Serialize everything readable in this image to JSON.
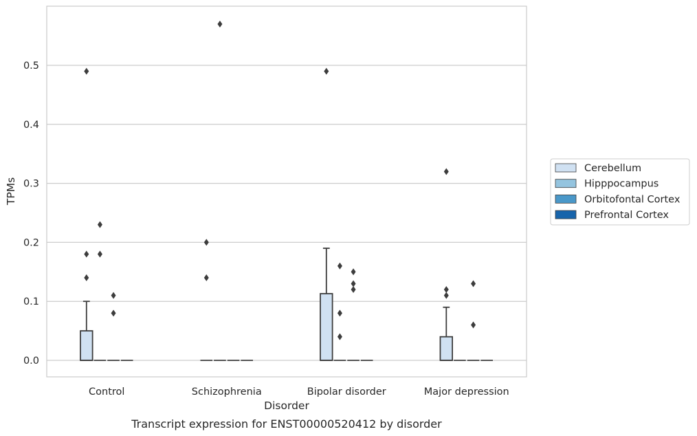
{
  "chart_data": {
    "type": "box",
    "caption": "Transcript expression for ENST00000520412 by disorder",
    "xlabel": "Disorder",
    "ylabel": "TPMs",
    "ylim": [
      -0.028,
      0.598
    ],
    "yticks": [
      "0.0",
      "0.1",
      "0.2",
      "0.3",
      "0.4",
      "0.5"
    ],
    "grid": "horizontal",
    "legend_placement": "right",
    "categories": [
      "Control",
      "Schizophrenia",
      "Bipolar disorder",
      "Major depression"
    ],
    "series": [
      {
        "name": "Cerebellum",
        "color": "#d0e1f2",
        "boxes": [
          {
            "q1": 0,
            "median": 0,
            "q3": 0.05,
            "whisker_low": 0,
            "whisker_high": 0.1,
            "outliers": [
              0.14,
              0.18,
              0.49
            ]
          },
          {
            "q1": 0,
            "median": 0,
            "q3": 0,
            "whisker_low": 0,
            "whisker_high": 0,
            "outliers": [
              0.14,
              0.2
            ]
          },
          {
            "q1": 0,
            "median": 0,
            "q3": 0.113,
            "whisker_low": 0,
            "whisker_high": 0.19,
            "outliers": [
              0.49
            ]
          },
          {
            "q1": 0,
            "median": 0,
            "q3": 0.04,
            "whisker_low": 0,
            "whisker_high": 0.09,
            "outliers": [
              0.11,
              0.12,
              0.32
            ]
          }
        ]
      },
      {
        "name": "Hipppocampus",
        "color": "#94c4df",
        "boxes": [
          {
            "q1": 0,
            "median": 0,
            "q3": 0,
            "whisker_low": 0,
            "whisker_high": 0,
            "outliers": [
              0.18,
              0.23
            ]
          },
          {
            "q1": 0,
            "median": 0,
            "q3": 0,
            "whisker_low": 0,
            "whisker_high": 0,
            "outliers": [
              0.57
            ]
          },
          {
            "q1": 0,
            "median": 0,
            "q3": 0,
            "whisker_low": 0,
            "whisker_high": 0,
            "outliers": [
              0.04,
              0.08,
              0.16
            ]
          },
          {
            "q1": 0,
            "median": 0,
            "q3": 0,
            "whisker_low": 0,
            "whisker_high": 0,
            "outliers": []
          }
        ]
      },
      {
        "name": "Orbitofontal Cortex",
        "color": "#4a98c9",
        "boxes": [
          {
            "q1": 0,
            "median": 0,
            "q3": 0,
            "whisker_low": 0,
            "whisker_high": 0,
            "outliers": [
              0.08,
              0.11
            ]
          },
          {
            "q1": 0,
            "median": 0,
            "q3": 0,
            "whisker_low": 0,
            "whisker_high": 0,
            "outliers": []
          },
          {
            "q1": 0,
            "median": 0,
            "q3": 0,
            "whisker_low": 0,
            "whisker_high": 0,
            "outliers": [
              0.12,
              0.13,
              0.15
            ]
          },
          {
            "q1": 0,
            "median": 0,
            "q3": 0,
            "whisker_low": 0,
            "whisker_high": 0,
            "outliers": [
              0.06,
              0.13
            ]
          }
        ]
      },
      {
        "name": "Prefrontal Cortex",
        "color": "#1764ab",
        "boxes": [
          {
            "q1": 0,
            "median": 0,
            "q3": 0,
            "whisker_low": 0,
            "whisker_high": 0,
            "outliers": []
          },
          {
            "q1": 0,
            "median": 0,
            "q3": 0,
            "whisker_low": 0,
            "whisker_high": 0,
            "outliers": []
          },
          {
            "q1": 0,
            "median": 0,
            "q3": 0,
            "whisker_low": 0,
            "whisker_high": 0,
            "outliers": []
          },
          {
            "q1": 0,
            "median": 0,
            "q3": 0,
            "whisker_low": 0,
            "whisker_high": 0,
            "outliers": []
          }
        ]
      }
    ]
  }
}
